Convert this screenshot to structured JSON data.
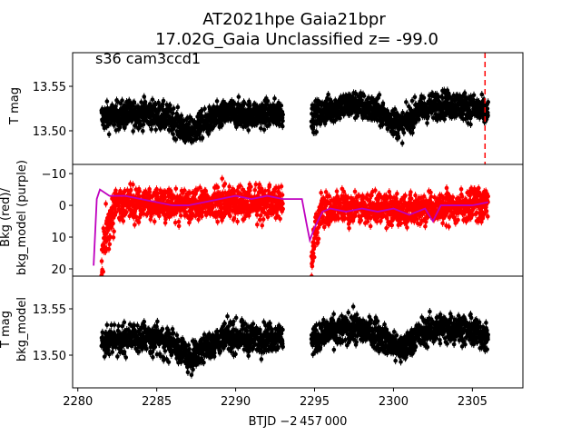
{
  "chart_data": {
    "type": "scatter",
    "title_line1": "AT2021hpe  Gaia21bpr",
    "title_line2": "17.02G_Gaia Unclassified z= -99.0",
    "annotation": "s36 cam3ccd1",
    "xlabel": "BTJD −2 457 000",
    "xlim": [
      2279.67,
      2308.2
    ],
    "xticks": [
      "2280",
      "2285",
      "2290",
      "2295",
      "2300",
      "2305"
    ],
    "xtick_values": [
      2280,
      2285,
      2290,
      2295,
      2300,
      2305
    ],
    "segments": [
      [
        2281.5,
        2293.0
      ],
      [
        2294.8,
        2306.0
      ]
    ],
    "marker_line_x": 2305.8,
    "panels": [
      {
        "name": "flux",
        "ylabel": "T mag",
        "ylim": [
          13.5878,
          13.4622
        ],
        "yticks": [
          "13.50",
          "13.55"
        ],
        "ytick_values": [
          13.5,
          13.55
        ],
        "color": "#000000",
        "scatter": 0.011,
        "trend_t": [
          2281.5,
          2283,
          2284.5,
          2286,
          2287,
          2288,
          2289.5,
          2291,
          2293,
          2294.8,
          2296,
          2297.5,
          2299,
          2300.5,
          2301.5,
          2303,
          2304.5,
          2306
        ],
        "trend_y": [
          13.515,
          13.518,
          13.52,
          13.512,
          13.497,
          13.508,
          13.52,
          13.518,
          13.52,
          13.515,
          13.525,
          13.53,
          13.522,
          13.505,
          13.522,
          13.53,
          13.528,
          13.52
        ]
      },
      {
        "name": "background",
        "ylabel": "Bkg (red)/\nbkg_model (purple)",
        "ylabel_lines": [
          "Bkg (red)/",
          "bkg_model (purple)"
        ],
        "ylim": [
          -12.9,
          22.3
        ],
        "yticks": [
          "−10",
          "0",
          "10",
          "20"
        ],
        "ytick_values": [
          -10,
          0,
          10,
          20
        ],
        "color": "#ff0000",
        "model_color": "#bf00bf",
        "scatter": 2.5,
        "trend_t": [
          2281.5,
          2281.8,
          2282.2,
          2283,
          2285,
          2287,
          2289,
          2291,
          2293,
          2294.8,
          2295,
          2295.5,
          2297,
          2299,
          2301,
          2303,
          2305,
          2306
        ],
        "trend_y": [
          14,
          5,
          0,
          -1,
          0,
          0,
          -1,
          -1,
          -1,
          15,
          6,
          1,
          1,
          1,
          2,
          1,
          0,
          0
        ],
        "model_t": [
          2281.0,
          2281.2,
          2281.4,
          2282,
          2283,
          2284,
          2285,
          2286,
          2287,
          2288,
          2289,
          2290,
          2291,
          2292,
          2293,
          2294.2,
          2294.5,
          2294.7,
          2295.0,
          2295.5,
          2296,
          2297,
          2298,
          2299,
          2300,
          2301,
          2302,
          2302.5,
          2303,
          2304,
          2305,
          2306
        ],
        "model_y": [
          19,
          -2,
          -5,
          -3,
          -3,
          -2,
          -1,
          0,
          0,
          -1,
          -2,
          -3,
          -2,
          -3,
          -2,
          -2,
          6,
          11,
          7,
          2,
          1,
          2,
          1,
          2,
          1,
          3,
          1,
          5,
          0,
          0,
          0,
          -1
        ]
      },
      {
        "name": "flux-minus-bkg",
        "ylabel": "T mag\nbkg_model",
        "ylabel_lines": [
          "T mag",
          "bkg_model"
        ],
        "ylim": [
          13.5853,
          13.4647
        ],
        "yticks": [
          "13.50",
          "13.55"
        ],
        "ytick_values": [
          13.5,
          13.55
        ],
        "color": "#000000",
        "scatter": 0.011,
        "trend_t": [
          2281.5,
          2283,
          2284.5,
          2286,
          2287,
          2288,
          2289.5,
          2291,
          2293,
          2294.8,
          2296,
          2297.5,
          2299,
          2300.5,
          2301.5,
          2303,
          2304.5,
          2306
        ],
        "trend_y": [
          13.515,
          13.518,
          13.52,
          13.512,
          13.497,
          13.508,
          13.52,
          13.518,
          13.52,
          13.515,
          13.525,
          13.53,
          13.522,
          13.505,
          13.522,
          13.53,
          13.528,
          13.52
        ]
      }
    ]
  }
}
